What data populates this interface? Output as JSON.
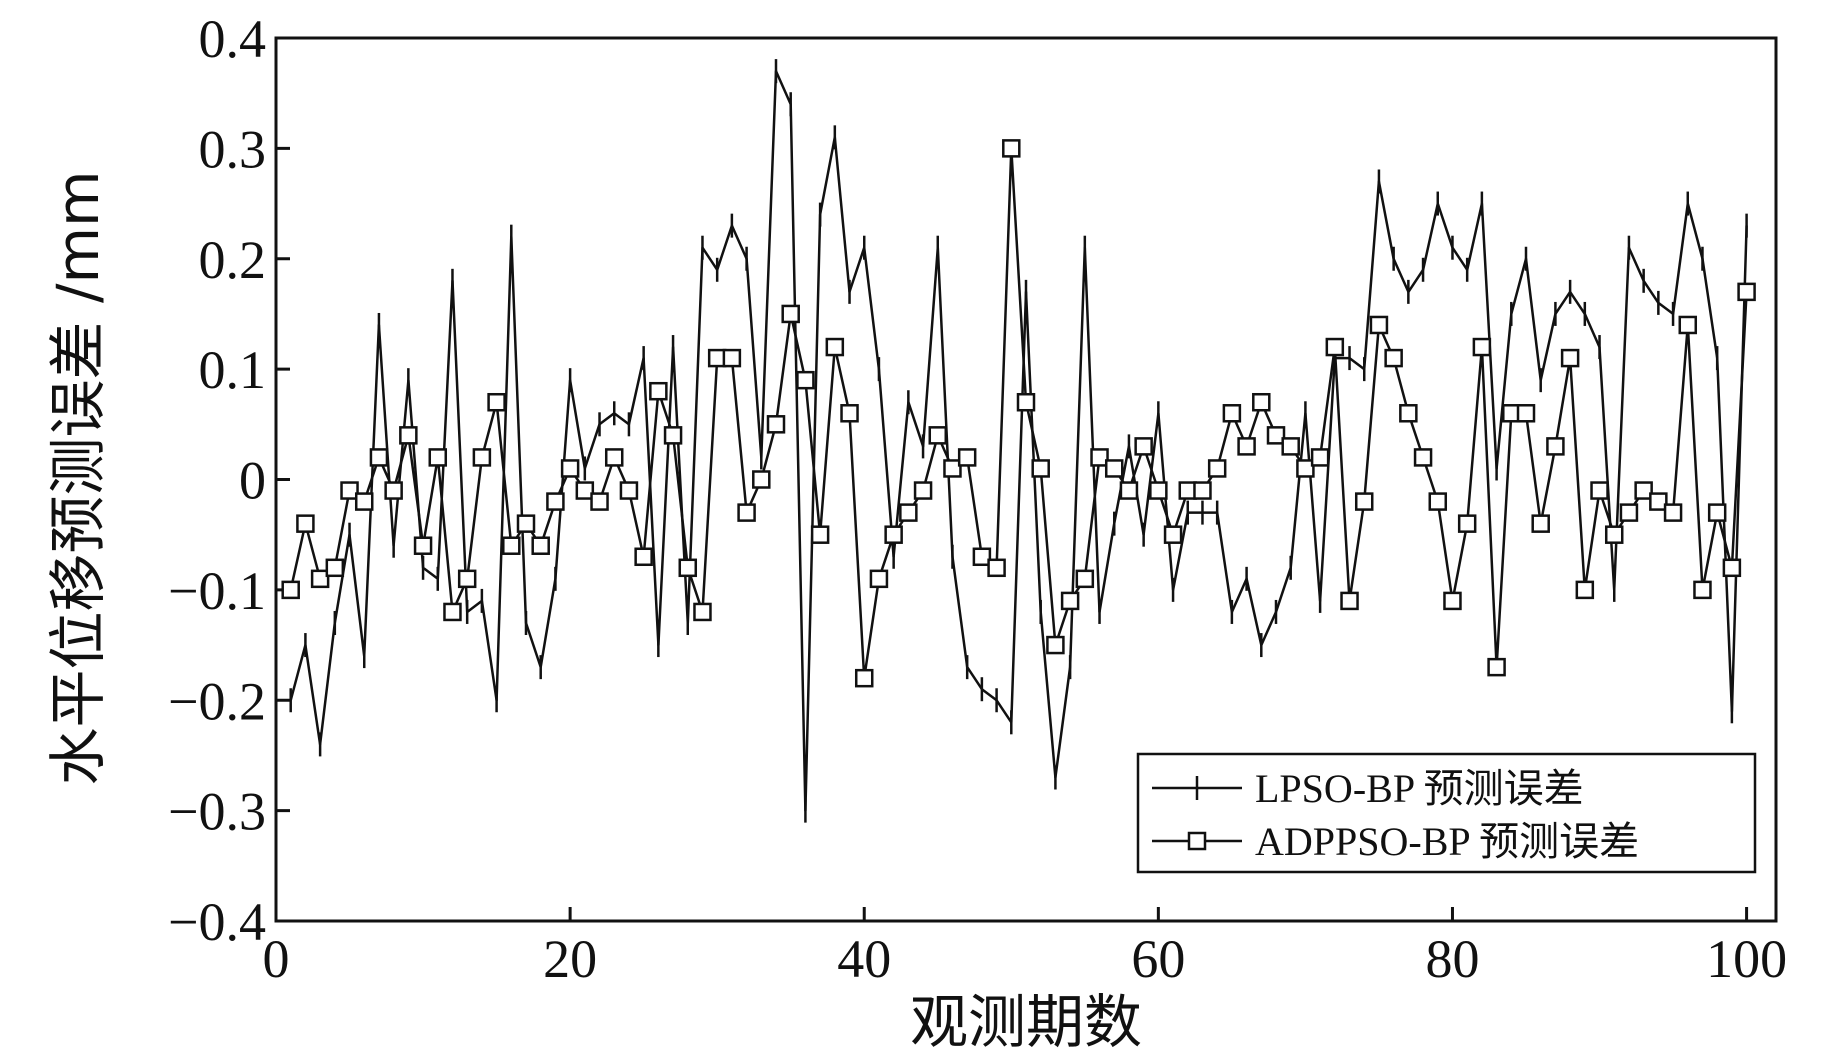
{
  "chart_data": {
    "type": "line",
    "title": "",
    "xlabel": "观测期数",
    "ylabel": "水平位移预测误差 /mm",
    "xlim": [
      0,
      102
    ],
    "ylim": [
      -0.4,
      0.4
    ],
    "xticks": [
      0,
      20,
      40,
      60,
      80,
      100
    ],
    "xtick_labels": [
      "0",
      "20",
      "40",
      "60",
      "80",
      "100"
    ],
    "yticks": [
      0.4,
      0.3,
      0.2,
      0.1,
      0,
      -0.1,
      -0.2,
      -0.3,
      -0.4
    ],
    "ytick_labels": [
      "0.4",
      "0.3",
      "0.2",
      "0.1",
      "0",
      "−0.1",
      "−0.2",
      "−0.3",
      "−0.4"
    ],
    "grid": false,
    "legend_position": "bottom-right",
    "series": [
      {
        "name": "LPSO-BP 预测误差",
        "marker": "plus",
        "x": [
          1,
          2,
          3,
          4,
          5,
          6,
          7,
          8,
          9,
          10,
          11,
          12,
          13,
          14,
          15,
          16,
          17,
          18,
          19,
          20,
          21,
          22,
          23,
          24,
          25,
          26,
          27,
          28,
          29,
          30,
          31,
          32,
          33,
          34,
          35,
          36,
          37,
          38,
          39,
          40,
          41,
          42,
          43,
          44,
          45,
          46,
          47,
          48,
          49,
          50,
          51,
          52,
          53,
          54,
          55,
          56,
          57,
          58,
          59,
          60,
          61,
          62,
          63,
          64,
          65,
          66,
          67,
          68,
          69,
          70,
          71,
          72,
          73,
          74,
          75,
          76,
          77,
          78,
          79,
          80,
          81,
          82,
          83,
          84,
          85,
          86,
          87,
          88,
          89,
          90,
          91,
          92,
          93,
          94,
          95,
          96,
          97,
          98,
          99,
          100
        ],
        "values": [
          -0.2,
          -0.15,
          -0.24,
          -0.13,
          -0.05,
          -0.16,
          0.14,
          -0.06,
          0.09,
          -0.08,
          -0.09,
          0.18,
          -0.12,
          -0.11,
          -0.2,
          0.22,
          -0.13,
          -0.17,
          -0.09,
          0.09,
          0.01,
          0.05,
          0.06,
          0.05,
          0.11,
          -0.15,
          0.12,
          -0.13,
          0.21,
          0.19,
          0.23,
          0.2,
          0.02,
          0.37,
          0.34,
          -0.3,
          0.24,
          0.31,
          0.17,
          0.21,
          0.1,
          -0.07,
          0.07,
          0.03,
          0.21,
          -0.07,
          -0.17,
          -0.19,
          -0.2,
          -0.22,
          0.17,
          -0.12,
          -0.27,
          -0.17,
          0.21,
          -0.12,
          -0.04,
          0.03,
          -0.05,
          0.06,
          -0.1,
          -0.03,
          -0.03,
          -0.03,
          -0.12,
          -0.09,
          -0.15,
          -0.12,
          -0.08,
          0.06,
          -0.11,
          0.11,
          0.11,
          0.1,
          0.27,
          0.2,
          0.17,
          0.19,
          0.25,
          0.21,
          0.19,
          0.25,
          0.01,
          0.15,
          0.2,
          0.09,
          0.15,
          0.17,
          0.15,
          0.12,
          -0.1,
          0.21,
          0.18,
          0.16,
          0.15,
          0.25,
          0.2,
          0.11,
          -0.21,
          0.23
        ]
      },
      {
        "name": "ADPPSO-BP 预测误差",
        "marker": "square",
        "x": [
          1,
          2,
          3,
          4,
          5,
          6,
          7,
          8,
          9,
          10,
          11,
          12,
          13,
          14,
          15,
          16,
          17,
          18,
          19,
          20,
          21,
          22,
          23,
          24,
          25,
          26,
          27,
          28,
          29,
          30,
          31,
          32,
          33,
          34,
          35,
          36,
          37,
          38,
          39,
          40,
          41,
          42,
          43,
          44,
          45,
          46,
          47,
          48,
          49,
          50,
          51,
          52,
          53,
          54,
          55,
          56,
          57,
          58,
          59,
          60,
          61,
          62,
          63,
          64,
          65,
          66,
          67,
          68,
          69,
          70,
          71,
          72,
          73,
          74,
          75,
          76,
          77,
          78,
          79,
          80,
          81,
          82,
          83,
          84,
          85,
          86,
          87,
          88,
          89,
          90,
          91,
          92,
          93,
          94,
          95,
          96,
          97,
          98,
          99,
          100
        ],
        "values": [
          -0.1,
          -0.04,
          -0.09,
          -0.08,
          -0.01,
          -0.02,
          0.02,
          -0.01,
          0.04,
          -0.06,
          0.02,
          -0.12,
          -0.09,
          0.02,
          0.07,
          -0.06,
          -0.04,
          -0.06,
          -0.02,
          0.01,
          -0.01,
          -0.02,
          0.02,
          -0.01,
          -0.07,
          0.08,
          0.04,
          -0.08,
          -0.12,
          0.11,
          0.11,
          -0.03,
          0.0,
          0.05,
          0.15,
          0.09,
          -0.05,
          0.12,
          0.06,
          -0.18,
          -0.09,
          -0.05,
          -0.03,
          -0.01,
          0.04,
          0.01,
          0.02,
          -0.07,
          -0.08,
          0.3,
          0.07,
          0.01,
          -0.15,
          -0.11,
          -0.09,
          0.02,
          0.01,
          -0.01,
          0.03,
          -0.01,
          -0.05,
          -0.01,
          -0.01,
          0.01,
          0.06,
          0.03,
          0.07,
          0.04,
          0.03,
          0.01,
          0.02,
          0.12,
          -0.11,
          -0.02,
          0.14,
          0.11,
          0.06,
          0.02,
          -0.02,
          -0.11,
          -0.04,
          0.12,
          -0.17,
          0.06,
          0.06,
          -0.04,
          0.03,
          0.11,
          -0.1,
          -0.01,
          -0.05,
          -0.03,
          -0.01,
          -0.02,
          -0.03,
          0.14,
          -0.1,
          -0.03,
          -0.08,
          0.17
        ]
      }
    ]
  }
}
